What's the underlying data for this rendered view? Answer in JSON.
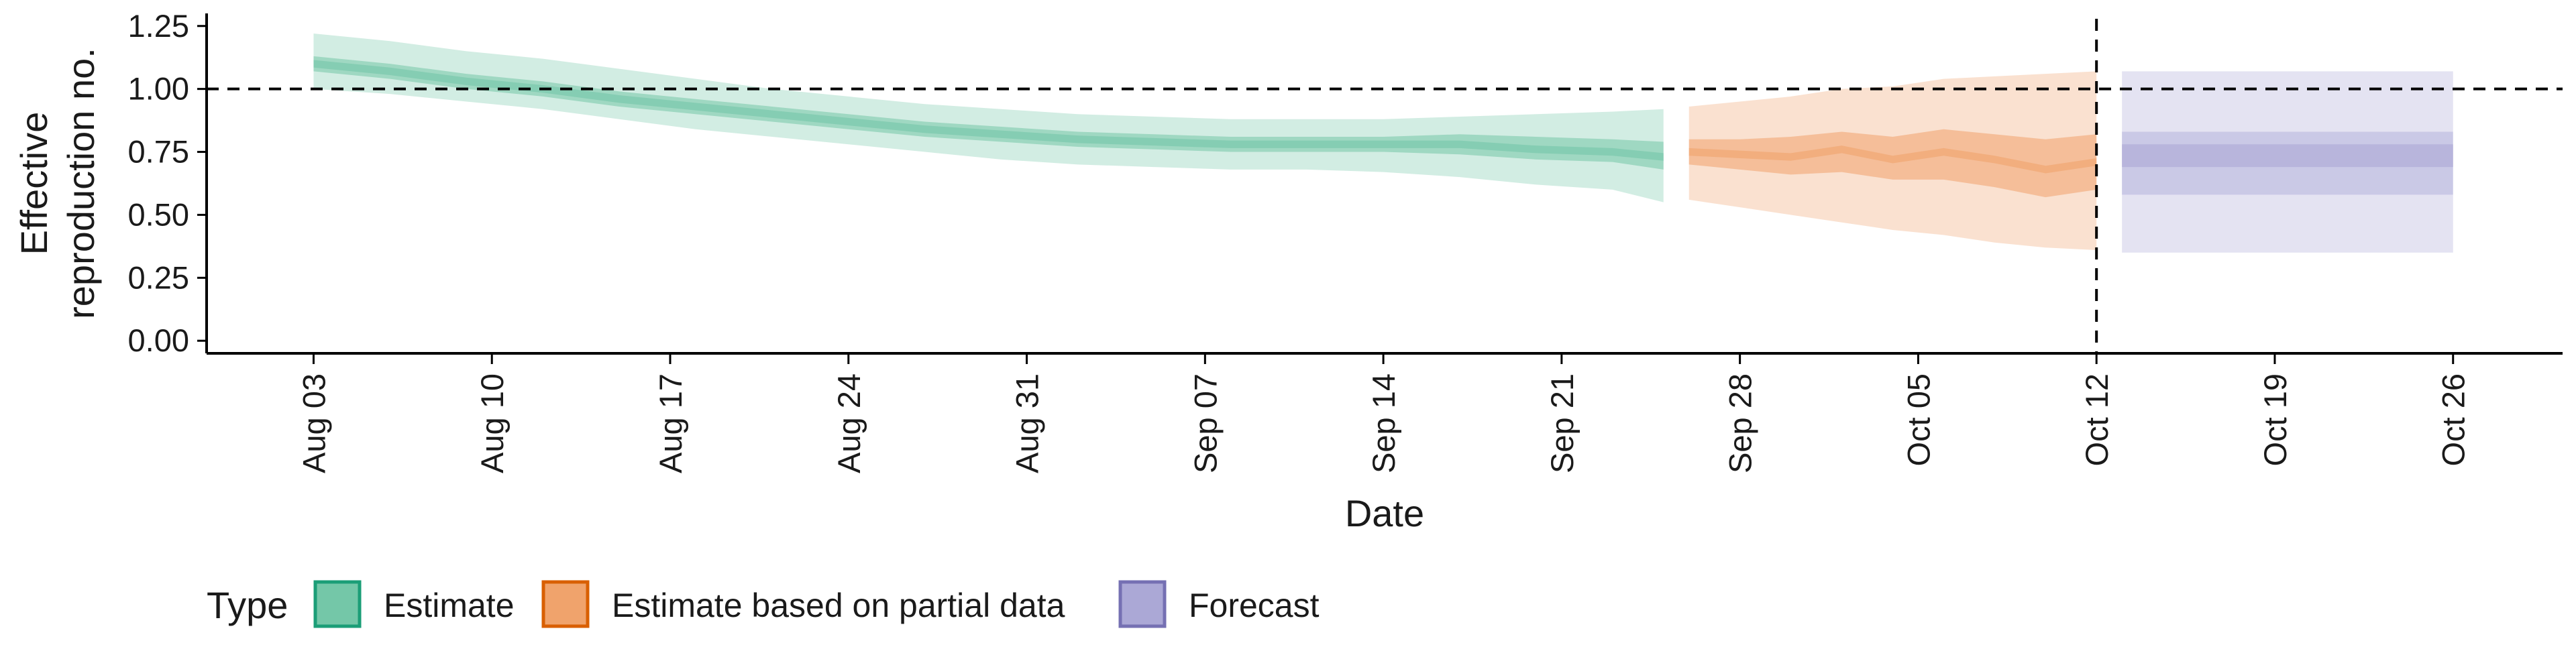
{
  "chart_data": {
    "type": "area",
    "title": "",
    "xlabel": "Date",
    "ylabel": [
      "Effective",
      "reproduction no."
    ],
    "ylim": [
      -0.05,
      1.3
    ],
    "y_ticks": [
      0.0,
      0.25,
      0.5,
      0.75,
      1.0
    ],
    "y_tick_labels": [
      "0.00",
      "0.25",
      "0.50",
      "0.75",
      "1.00"
    ],
    "y_tick_top_label": "1.25",
    "x_start": "2020-08-03",
    "x_end": "2020-10-26",
    "x_ticks_day": [
      0,
      7,
      14,
      21,
      28,
      35,
      42,
      49,
      56,
      63,
      70,
      77,
      84
    ],
    "x_tick_labels": [
      "Aug 03",
      "Aug 10",
      "Aug 17",
      "Aug 24",
      "Aug 31",
      "Sep 07",
      "Sep 14",
      "Sep 21",
      "Sep 28",
      "Oct 05",
      "Oct 12",
      "Oct 19",
      "Oct 26"
    ],
    "x_range_day": [
      -4.2,
      88.3
    ],
    "reference_hline": 1.0,
    "reference_vline_day": 70,
    "series": [
      {
        "name": "Estimate",
        "color": "#1b9e77",
        "fill": "#74c7a8",
        "days": [
          0,
          3,
          6,
          9,
          12,
          15,
          18,
          21,
          24,
          27,
          30,
          33,
          36,
          39,
          42,
          45,
          48,
          51,
          53
        ],
        "median": [
          1.1,
          1.07,
          1.03,
          1.0,
          0.96,
          0.93,
          0.9,
          0.87,
          0.84,
          0.82,
          0.8,
          0.79,
          0.78,
          0.78,
          0.78,
          0.78,
          0.76,
          0.75,
          0.73
        ],
        "ci50_low": [
          1.07,
          1.04,
          1.0,
          0.97,
          0.93,
          0.9,
          0.87,
          0.84,
          0.81,
          0.79,
          0.77,
          0.76,
          0.75,
          0.75,
          0.75,
          0.74,
          0.72,
          0.71,
          0.68
        ],
        "ci50_high": [
          1.13,
          1.1,
          1.06,
          1.03,
          0.99,
          0.96,
          0.93,
          0.9,
          0.87,
          0.85,
          0.83,
          0.82,
          0.81,
          0.81,
          0.81,
          0.82,
          0.81,
          0.8,
          0.79
        ],
        "ci90_low": [
          1.0,
          0.98,
          0.95,
          0.92,
          0.88,
          0.84,
          0.81,
          0.78,
          0.75,
          0.72,
          0.7,
          0.69,
          0.68,
          0.68,
          0.67,
          0.65,
          0.62,
          0.6,
          0.55
        ],
        "ci90_high": [
          1.22,
          1.19,
          1.15,
          1.12,
          1.08,
          1.04,
          1.0,
          0.97,
          0.94,
          0.92,
          0.9,
          0.89,
          0.88,
          0.88,
          0.88,
          0.89,
          0.9,
          0.91,
          0.92
        ]
      },
      {
        "name": "Estimate based on partial data",
        "color": "#d95f02",
        "fill": "#f0a36c",
        "days": [
          54,
          56,
          58,
          60,
          62,
          64,
          66,
          68,
          70
        ],
        "median": [
          0.75,
          0.74,
          0.73,
          0.76,
          0.72,
          0.75,
          0.72,
          0.68,
          0.71
        ],
        "ci50_low": [
          0.7,
          0.68,
          0.66,
          0.67,
          0.64,
          0.64,
          0.61,
          0.57,
          0.6
        ],
        "ci50_high": [
          0.8,
          0.8,
          0.81,
          0.83,
          0.81,
          0.84,
          0.82,
          0.8,
          0.82
        ],
        "ci90_low": [
          0.56,
          0.53,
          0.5,
          0.47,
          0.44,
          0.42,
          0.39,
          0.37,
          0.36
        ],
        "ci90_high": [
          0.93,
          0.95,
          0.97,
          1.0,
          1.01,
          1.04,
          1.05,
          1.06,
          1.07
        ]
      },
      {
        "name": "Forecast",
        "color": "#7570b3",
        "fill": "#aba8d6",
        "days": [
          71,
          84
        ],
        "median": [
          0.73,
          0.73
        ],
        "ci20_low": [
          0.69,
          0.69
        ],
        "ci20_high": [
          0.78,
          0.78
        ],
        "ci50_low": [
          0.58,
          0.58
        ],
        "ci50_high": [
          0.83,
          0.83
        ],
        "ci90_low": [
          0.35,
          0.35
        ],
        "ci90_high": [
          1.07,
          1.07
        ]
      }
    ],
    "legend": {
      "title": "Type",
      "position": "bottom-left",
      "entries": [
        "Estimate",
        "Estimate based on partial data",
        "Forecast"
      ]
    }
  }
}
